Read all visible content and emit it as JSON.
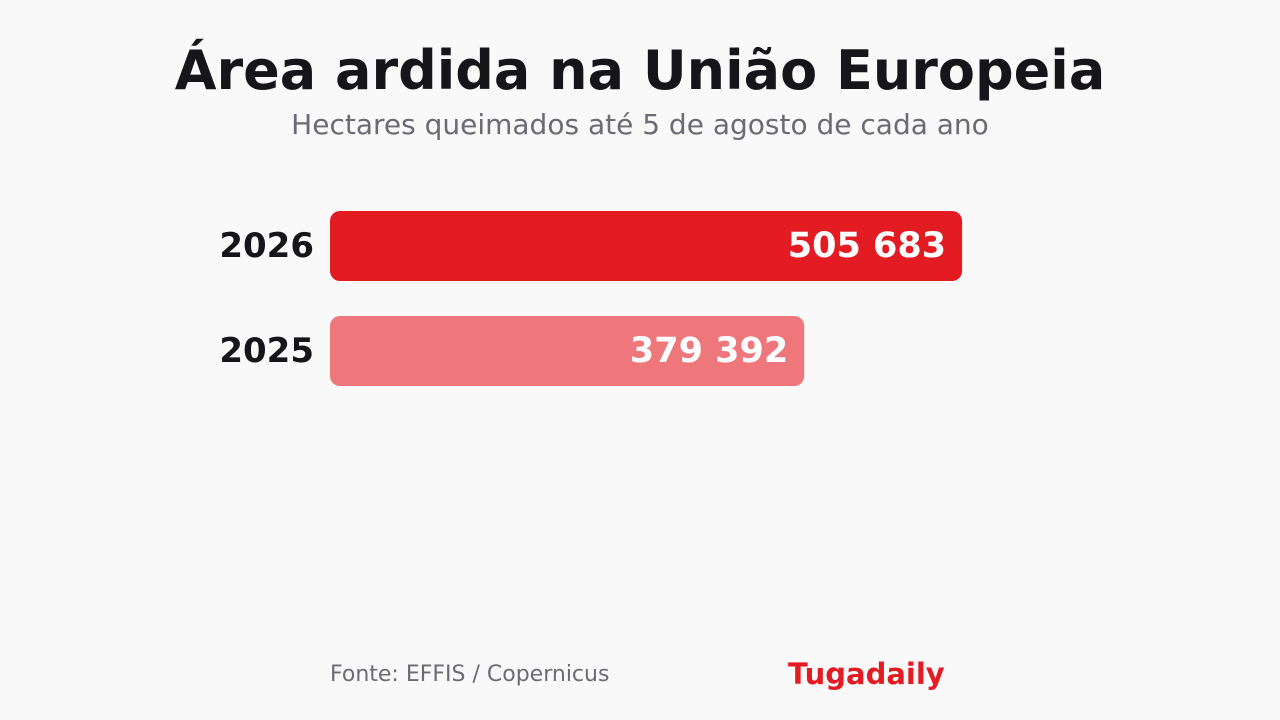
{
  "header": {
    "title": "Área ardida na União Europeia",
    "subtitle": "Hectares queimados até 5 de agosto de cada ano"
  },
  "chart_data": {
    "type": "bar",
    "orientation": "horizontal",
    "title": "Área ardida na União Europeia",
    "subtitle": "Hectares queimados até 5 de agosto de cada ano",
    "categories": [
      "2026",
      "2025"
    ],
    "values": [
      505683,
      379392
    ],
    "value_labels": [
      "505 683",
      "379 392"
    ],
    "colors": [
      "#e31c24",
      "#ee777c"
    ],
    "xlim": [
      0,
      700000
    ],
    "grid": false,
    "legend": "none"
  },
  "footer": {
    "source": "Fonte: EFFIS / Copernicus",
    "brand": "Tugadaily"
  }
}
